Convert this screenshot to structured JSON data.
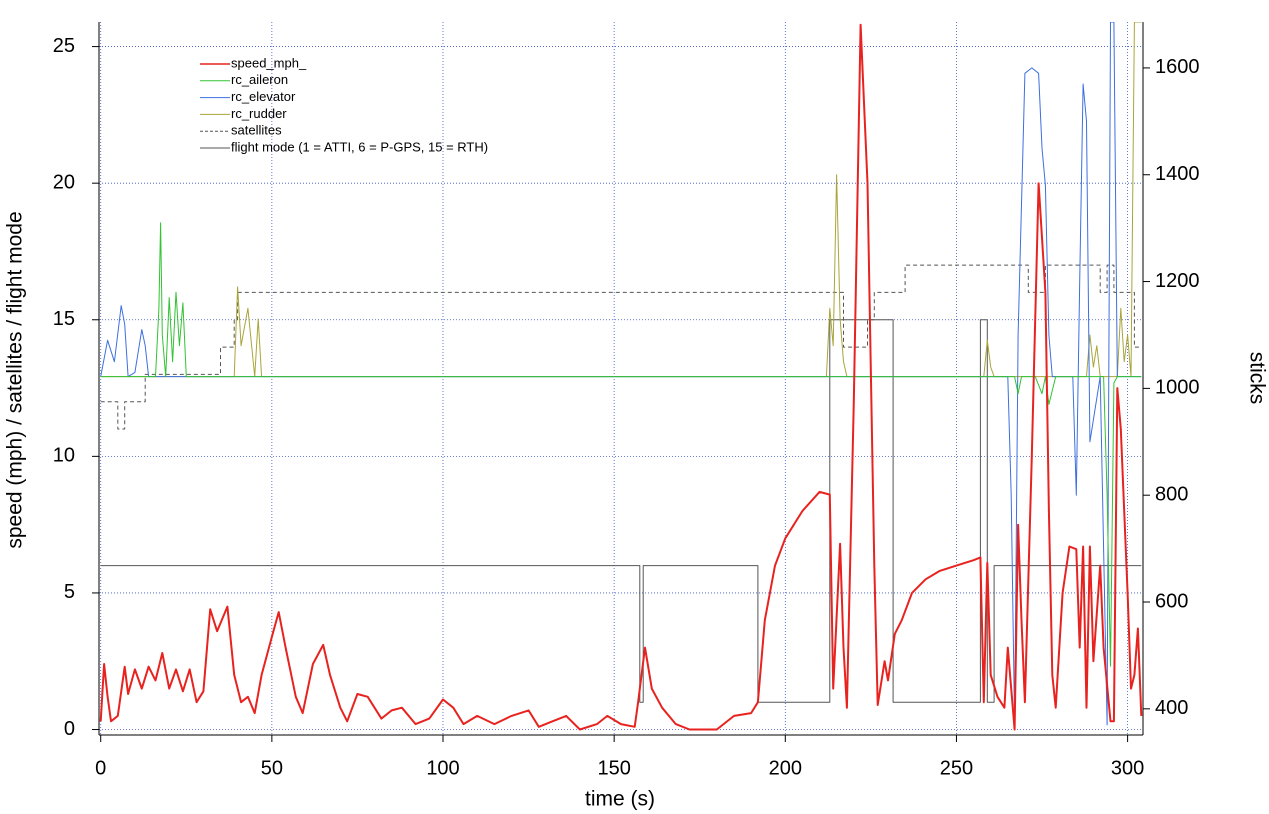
{
  "chart_data": {
    "type": "line",
    "xlabel": "time (s)",
    "ylabel": "speed (mph) / satellites / flight mode",
    "y2label": "sticks",
    "xlim": [
      -0.5,
      304.5
    ],
    "ylim": [
      -0.2,
      25.9
    ],
    "y2lim": [
      351,
      1686
    ],
    "xticks": [
      0,
      50,
      100,
      150,
      200,
      250,
      300
    ],
    "yticks": [
      0,
      5,
      10,
      15,
      20,
      25
    ],
    "y2ticks": [
      400,
      600,
      800,
      1000,
      1200,
      1400,
      1600
    ],
    "grid": true,
    "legend": "upper left",
    "series": [
      {
        "name": "speed_mph_",
        "color": "#e8231f",
        "line_width": 2,
        "x": [
          0,
          1,
          2,
          3,
          5,
          7,
          8,
          10,
          12,
          14,
          16,
          18,
          20,
          22,
          24,
          26,
          28,
          30,
          32,
          34,
          37,
          39,
          41,
          43,
          45,
          47,
          50,
          52,
          54,
          57,
          59,
          62,
          65,
          67,
          70,
          72,
          75,
          78,
          82,
          85,
          88,
          92,
          96,
          100,
          103,
          106,
          110,
          115,
          120,
          125,
          128,
          132,
          136,
          140,
          145,
          148,
          152,
          156,
          157,
          159,
          161,
          164,
          168,
          172,
          180,
          185,
          190,
          192,
          194,
          197,
          200,
          205,
          210,
          213,
          214,
          216,
          217,
          218,
          220,
          222,
          224,
          226,
          227,
          229,
          230,
          232,
          234,
          237,
          241,
          245,
          250,
          255,
          257,
          258,
          259,
          260,
          262,
          264,
          265,
          267,
          268,
          269,
          270,
          272,
          274,
          276,
          277,
          278,
          279,
          281,
          283,
          285,
          286,
          287,
          288,
          289,
          290,
          292,
          293,
          295,
          296,
          297,
          298,
          300,
          301,
          302,
          303,
          304
        ],
        "values": [
          0.3,
          2.4,
          1.2,
          0.3,
          0.5,
          2.3,
          1.3,
          2.2,
          1.5,
          2.3,
          1.8,
          2.8,
          1.5,
          2.2,
          1.4,
          2.2,
          1.0,
          1.4,
          4.4,
          3.6,
          4.5,
          2.0,
          1.0,
          1.2,
          0.6,
          2.0,
          3.4,
          4.3,
          3.0,
          1.2,
          0.6,
          2.4,
          3.1,
          2.0,
          0.8,
          0.3,
          1.3,
          1.2,
          0.4,
          0.7,
          0.8,
          0.2,
          0.4,
          1.1,
          0.8,
          0.2,
          0.5,
          0.2,
          0.5,
          0.7,
          0.1,
          0.3,
          0.5,
          0.0,
          0.2,
          0.5,
          0.2,
          0.1,
          1.0,
          3.0,
          1.5,
          0.8,
          0.2,
          0.0,
          0.0,
          0.5,
          0.6,
          1.0,
          4.0,
          6.0,
          7.0,
          8.0,
          8.7,
          8.6,
          1.5,
          6.8,
          3.0,
          0.8,
          12,
          25.8,
          20,
          6,
          0.9,
          2.5,
          1.8,
          3.5,
          4.0,
          5.0,
          5.5,
          5.8,
          6.0,
          6.2,
          6.3,
          1.0,
          6.1,
          2.0,
          1.2,
          0.8,
          3.0,
          0.0,
          7.5,
          4.0,
          1.0,
          10,
          20.0,
          16,
          8,
          2,
          0.8,
          5,
          6.7,
          6.6,
          3,
          6.7,
          0.8,
          6.7,
          2.5,
          6.0,
          3,
          0.3,
          0.3,
          12.5,
          11,
          5,
          1.5,
          2,
          3.7,
          0.5
        ]
      },
      {
        "name": "rc_aileron",
        "color": "#33c233",
        "line_width": 1,
        "axis": "y2",
        "x": [
          0,
          16,
          17,
          17.5,
          18,
          19,
          20,
          21,
          22,
          23,
          24,
          25,
          26,
          267,
          268,
          269,
          271,
          273,
          275,
          276,
          277,
          279,
          293,
          294,
          295,
          296,
          297,
          304
        ],
        "values": [
          1022,
          1022,
          1150,
          1310,
          1100,
          1022,
          1170,
          1050,
          1180,
          1080,
          1160,
          1022,
          1022,
          1022,
          990,
          1022,
          1022,
          1022,
          990,
          1022,
          970,
          1022,
          1022,
          800,
          480,
          1010,
          1022,
          1022
        ]
      },
      {
        "name": "rc_elevator",
        "color": "#3d6fe0",
        "line_width": 1,
        "axis": "y2",
        "x": [
          0,
          2,
          4,
          6,
          7,
          8,
          10,
          12,
          13,
          14,
          265,
          266,
          267,
          268,
          270,
          272,
          274,
          275,
          276,
          277,
          278,
          284,
          285,
          286,
          287,
          288,
          289,
          292,
          293,
          294,
          295,
          296,
          297,
          304
        ],
        "values": [
          1022,
          1090,
          1050,
          1155,
          1120,
          1022,
          1030,
          1110,
          1080,
          1022,
          1022,
          800,
          370,
          1100,
          1590,
          1600,
          1590,
          1450,
          1380,
          1100,
          1022,
          1022,
          800,
          1200,
          1570,
          1500,
          900,
          1022,
          700,
          370,
          1686,
          1686,
          1022,
          1022
        ]
      },
      {
        "name": "rc_rudder",
        "color": "#a9a53a",
        "line_width": 1,
        "axis": "y2",
        "x": [
          0,
          39,
          40,
          41,
          43,
          45,
          46,
          47,
          212,
          213,
          214,
          215,
          216,
          217,
          218,
          219,
          258,
          259,
          260,
          261,
          288,
          289,
          290,
          291,
          292,
          297,
          298,
          299,
          300,
          301,
          302,
          303,
          304
        ],
        "values": [
          1022,
          1022,
          1190,
          1080,
          1150,
          1022,
          1130,
          1022,
          1022,
          1150,
          1080,
          1400,
          1130,
          1050,
          1022,
          1022,
          1022,
          1090,
          1040,
          1022,
          1022,
          1100,
          1040,
          1080,
          1022,
          1022,
          1150,
          1050,
          1100,
          1022,
          1686,
          1686,
          1686
        ]
      },
      {
        "name": "satellites",
        "color": "#555555",
        "line_width": 1,
        "dashed": true,
        "x": [
          0,
          5,
          5,
          7,
          7,
          13,
          13,
          35,
          35,
          39,
          39,
          40,
          40,
          217,
          217,
          224,
          224,
          226,
          226,
          235,
          235,
          271,
          271,
          276,
          276,
          292,
          292,
          294,
          294,
          296,
          296,
          302,
          302,
          304
        ],
        "values": [
          12,
          12,
          11,
          11,
          12,
          12,
          13,
          13,
          14,
          14,
          15,
          15,
          16,
          16,
          14,
          14,
          15,
          15,
          16,
          16,
          17,
          17,
          16,
          16,
          17,
          17,
          16,
          16,
          17,
          17,
          16,
          16,
          14,
          14
        ]
      },
      {
        "name": "flight mode (1 = ATTI, 6 = P-GPS, 15 = RTH)",
        "color": "#555555",
        "line_width": 1,
        "x": [
          0,
          157.5,
          157.5,
          158.5,
          158.5,
          192,
          192,
          213,
          213,
          231.5,
          231.5,
          257,
          257,
          259,
          259,
          261,
          261,
          304
        ],
        "values": [
          6,
          6,
          1,
          1,
          6,
          6,
          1,
          1,
          15,
          15,
          1,
          1,
          15,
          15,
          1,
          1,
          6,
          6
        ]
      }
    ]
  }
}
